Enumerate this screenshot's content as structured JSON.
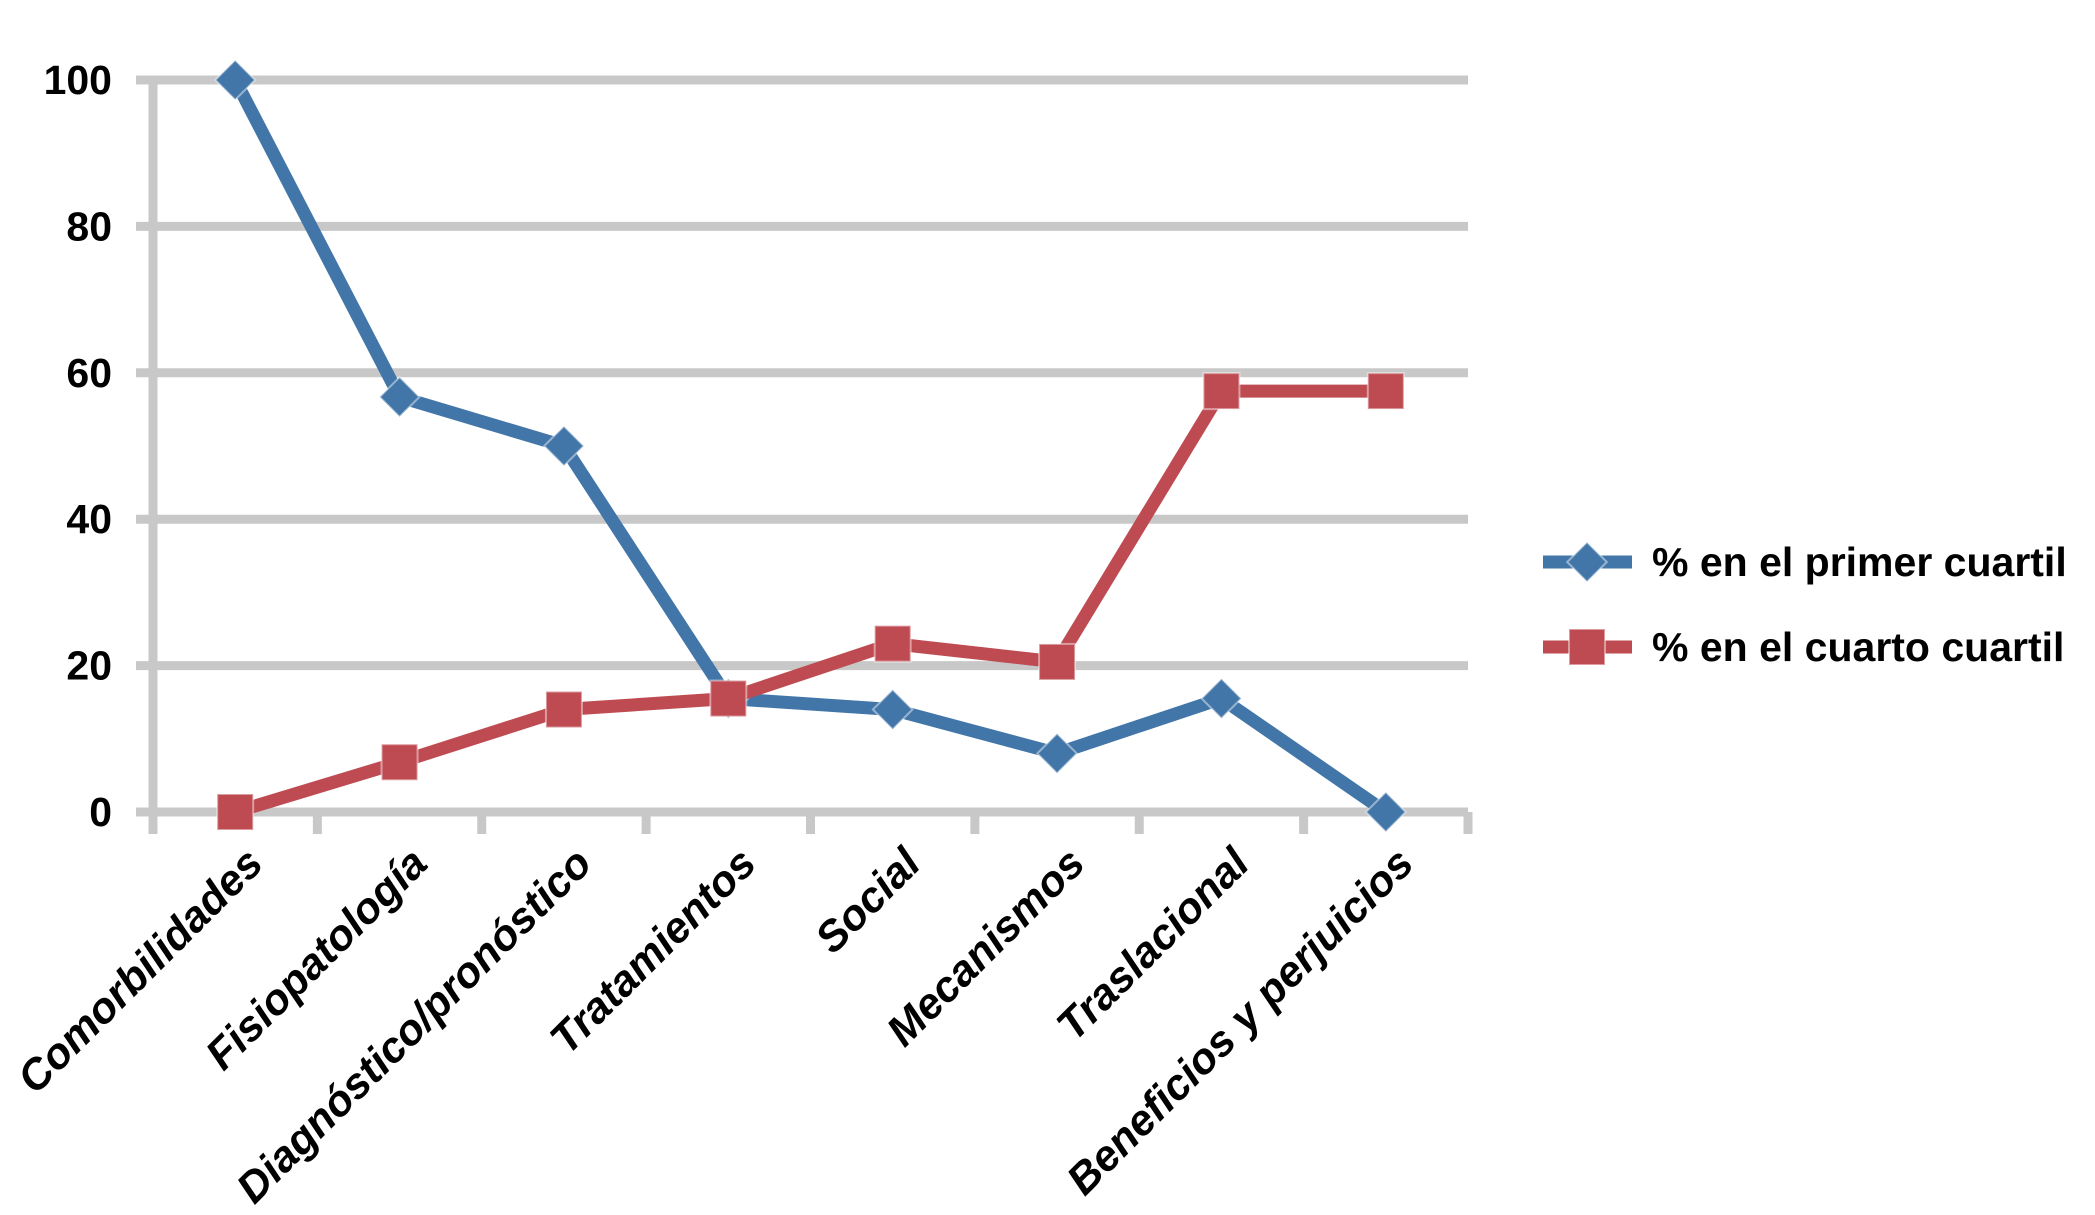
{
  "chart_data": {
    "type": "line",
    "title": "",
    "xlabel": "",
    "ylabel": "",
    "categories": [
      "Comorbilidades",
      "Fisiopatología",
      "Diagnóstico/pronóstico",
      "Tratamientos",
      "Social",
      "Mecanismos",
      "Traslacional",
      "Beneficios y perjuicios"
    ],
    "series": [
      {
        "name": "% en el primer cuartil",
        "marker": "diamond",
        "color": "#4276A9",
        "values": [
          100,
          56.7,
          50,
          15.5,
          14,
          8,
          15.5,
          0
        ]
      },
      {
        "name": "% en el cuarto cuartil",
        "marker": "square",
        "color": "#BF4B52",
        "values": [
          0,
          6.8,
          14,
          15.5,
          23,
          20.5,
          57.5,
          57.5
        ]
      }
    ],
    "ylim": [
      0,
      100
    ],
    "yticks": [
      0,
      20,
      40,
      60,
      80,
      100
    ],
    "grid": "horizontal",
    "legend_position": "right",
    "axis_color": "#C8C8C8",
    "text_color": "#000000",
    "background_color": "#FFFFFF"
  }
}
